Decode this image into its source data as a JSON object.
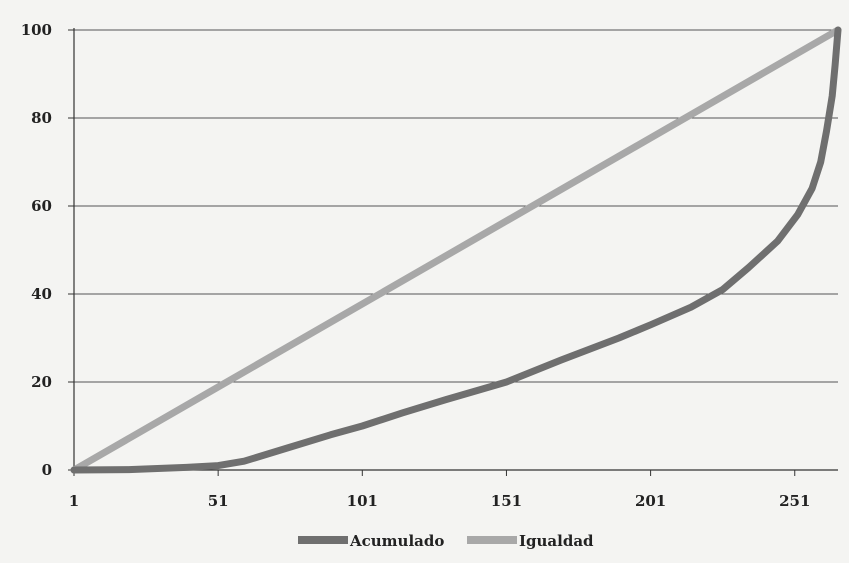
{
  "chart_data": {
    "type": "line",
    "title": "",
    "xlabel": "",
    "ylabel": "",
    "xlim": [
      1,
      266
    ],
    "ylim": [
      0,
      100
    ],
    "x_ticks": [
      "1",
      "51",
      "101",
      "151",
      "201",
      "251"
    ],
    "y_ticks": [
      "0",
      "20",
      "40",
      "60",
      "80",
      "100"
    ],
    "grid": "horizontal",
    "legend_position": "bottom",
    "series": [
      {
        "name": "Acumulado",
        "color": "#6f6f6f",
        "x": [
          1,
          20,
          40,
          51,
          60,
          75,
          90,
          101,
          115,
          130,
          151,
          170,
          190,
          201,
          215,
          226,
          235,
          245,
          252,
          257,
          260,
          262,
          264,
          265,
          266
        ],
        "y": [
          0,
          0.1,
          0.6,
          1,
          2,
          5,
          8,
          10,
          13,
          16,
          20,
          25,
          30,
          33,
          37,
          41,
          46,
          52,
          58,
          64,
          70,
          77,
          85,
          92,
          100
        ]
      },
      {
        "name": "Igualdad",
        "color": "#a8a8a8",
        "x": [
          1,
          266
        ],
        "y": [
          0,
          100
        ]
      }
    ]
  }
}
